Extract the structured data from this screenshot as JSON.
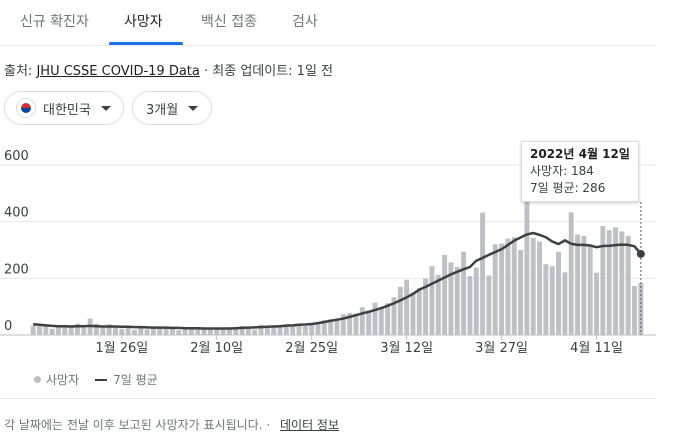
{
  "tabs": [
    {
      "label": "신규 확진자",
      "active": false
    },
    {
      "label": "사망자",
      "active": true
    },
    {
      "label": "백신 접종",
      "active": false
    },
    {
      "label": "검사",
      "active": false
    }
  ],
  "source": {
    "prefix": "출처:",
    "link": "JHU CSSE COVID-19 Data",
    "updated": "· 최종 업데이트: 1일 전"
  },
  "filters": {
    "country_flag_icon": "south-korea-flag-icon",
    "country": "대한민국",
    "period": "3개월"
  },
  "tooltip": {
    "date": "2022년 4월 12일",
    "deaths": "사망자: 184",
    "avg": "7일 평균: 286"
  },
  "legend": {
    "deaths": "사망자",
    "avg": "7일 평균"
  },
  "footnote": {
    "text": "각 날짜에는 전날 이후 보고된 사망자가 표시됩니다. ·",
    "link": "데이터 정보"
  },
  "colors": {
    "bar": "#bdc1c6",
    "line": "#3c4043",
    "accent": "#1a73e8"
  },
  "chart_data": {
    "type": "bar",
    "ylim": [
      0,
      600
    ],
    "yticks": [
      0,
      200,
      400,
      600
    ],
    "xtick_labels": [
      "1월 26일",
      "2월 10일",
      "2월 25일",
      "3월 12일",
      "3월 27일",
      "4월 11일"
    ],
    "xtick_indices": [
      14,
      29,
      44,
      59,
      74,
      89
    ],
    "grid": true,
    "series": [
      {
        "name": "사망자",
        "type": "bar",
        "values": [
          33,
          31,
          30,
          22,
          34,
          35,
          28,
          40,
          26,
          58,
          40,
          34,
          38,
          28,
          22,
          30,
          18,
          26,
          20,
          24,
          27,
          28,
          25,
          17,
          28,
          26,
          24,
          24,
          23,
          22,
          21,
          23,
          22,
          32,
          24,
          19,
          36,
          30,
          29,
          33,
          38,
          34,
          38,
          32,
          36,
          42,
          52,
          56,
          54,
          74,
          78,
          76,
          98,
          86,
          114,
          98,
          112,
          133,
          170,
          195,
          150,
          165,
          200,
          243,
          212,
          283,
          256,
          240,
          294,
          208,
          238,
          432,
          210,
          320,
          323,
          340,
          345,
          300,
          470,
          343,
          330,
          250,
          243,
          294,
          221,
          433,
          355,
          350,
          312,
          220,
          385,
          370,
          380,
          366,
          350,
          173,
          184
        ]
      },
      {
        "name": "7일 평균",
        "type": "line",
        "values": [
          38,
          36,
          34,
          32,
          31,
          31,
          30,
          31,
          31,
          32,
          31,
          30,
          30,
          30,
          29,
          29,
          28,
          28,
          27,
          26,
          26,
          26,
          25,
          25,
          24,
          24,
          24,
          23,
          23,
          23,
          23,
          23,
          24,
          25,
          26,
          27,
          28,
          29,
          30,
          31,
          33,
          34,
          36,
          37,
          39,
          42,
          46,
          50,
          54,
          58,
          64,
          70,
          76,
          82,
          88,
          95,
          103,
          112,
          122,
          133,
          145,
          160,
          170,
          181,
          192,
          203,
          214,
          223,
          232,
          240,
          262,
          272,
          283,
          293,
          303,
          318,
          333,
          344,
          355,
          360,
          353,
          345,
          330,
          321,
          334,
          322,
          318,
          318,
          316,
          310,
          314,
          315,
          317,
          319,
          318,
          313,
          286
        ]
      }
    ]
  }
}
